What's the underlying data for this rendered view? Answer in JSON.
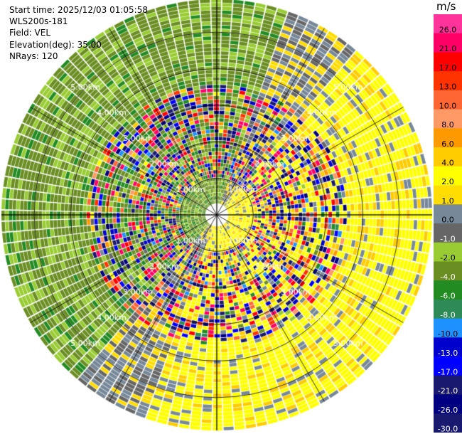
{
  "header": {
    "start_time": "Start time: 2025/12/03 01:05:58",
    "instrument": "WLS200s-181",
    "field": "Field: VEL",
    "elevation": "Elevation(deg): 35.00",
    "nrays": "NRays: 120"
  },
  "colorbar": {
    "unit": "m/s",
    "ticks": [
      "26.0",
      "21.0",
      "17.0",
      "13.0",
      "10.0",
      "8.0",
      "6.0",
      "4.0",
      "2.0",
      "1.0",
      "0.0",
      "-1.0",
      "-2.0",
      "-4.0",
      "-6.0",
      "-8.0",
      "-10.0",
      "-13.0",
      "-17.0",
      "-21.0",
      "-26.0",
      "-30.0"
    ],
    "colors": [
      "#ff3399",
      "#ff0066",
      "#ff0000",
      "#ff3300",
      "#ff6633",
      "#ff9966",
      "#ff9900",
      "#ffcc00",
      "#ffff00",
      "#ffdd00",
      "#778899",
      "#666666",
      "#99cc33",
      "#6b8e23",
      "#228b22",
      "#2e8b57",
      "#1e90ff",
      "#0000cd",
      "#0000ff",
      "#191970",
      "#000080",
      "#191970"
    ]
  },
  "chart_data": {
    "type": "heatmap",
    "title": "",
    "field": "VEL",
    "units": "m/s",
    "elevation_deg": 35.0,
    "n_rays": 120,
    "range_rings_km": [
      1.0,
      2.0,
      3.0,
      4.0,
      5.0
    ],
    "ring_labels": [
      "1.00km",
      "2.00km",
      "3.00km",
      "4.00km",
      "5.00km"
    ],
    "max_range_km": 5.9,
    "value_range": [
      -30.0,
      26.0
    ],
    "pattern": {
      "receding_sector_deg": [
        40,
        200
      ],
      "receding_typical_mps": [
        2.0,
        4.0
      ],
      "approaching_sector_deg": [
        220,
        340
      ],
      "approaching_typical_mps": [
        -4.0,
        -1.0
      ],
      "noisy_annulus_km": [
        1.0,
        3.5
      ]
    }
  }
}
